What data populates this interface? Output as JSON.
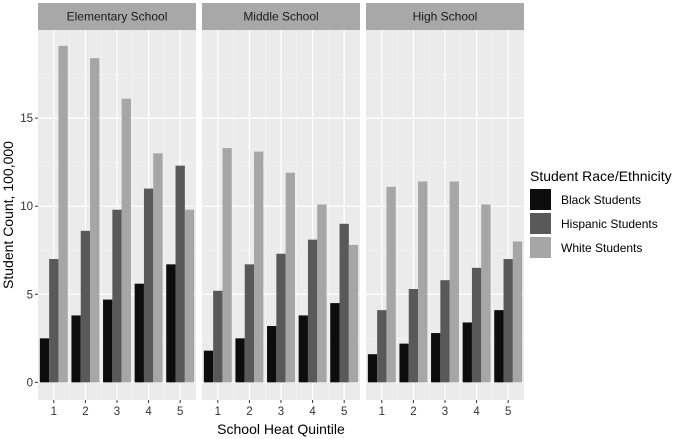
{
  "chart_data": {
    "type": "bar",
    "xlabel": "School Heat Quintile",
    "ylabel": "Student Count, 100,000",
    "categories": [
      "1",
      "2",
      "3",
      "4",
      "5"
    ],
    "y_ticks": [
      "0",
      "5",
      "10",
      "15"
    ],
    "ylim": [
      -1,
      20
    ],
    "grid": true,
    "legend": {
      "title": "Student Race/Ethnicity",
      "placement": "right",
      "entries": [
        {
          "name": "Black Students",
          "color": "#0d0d0d"
        },
        {
          "name": "Hispanic Students",
          "color": "#595959"
        },
        {
          "name": "White Students",
          "color": "#a6a6a6"
        }
      ]
    },
    "panels": [
      {
        "title": "Elementary School",
        "series": [
          {
            "name": "Black Students",
            "values": [
              2.5,
              3.8,
              4.7,
              5.6,
              6.7
            ]
          },
          {
            "name": "Hispanic Students",
            "values": [
              7.0,
              8.6,
              9.8,
              11.0,
              12.3
            ]
          },
          {
            "name": "White Students",
            "values": [
              19.1,
              18.4,
              16.1,
              13.0,
              9.8
            ]
          }
        ]
      },
      {
        "title": "Middle School",
        "series": [
          {
            "name": "Black Students",
            "values": [
              1.8,
              2.5,
              3.2,
              3.8,
              4.5
            ]
          },
          {
            "name": "Hispanic Students",
            "values": [
              5.2,
              6.7,
              7.3,
              8.1,
              9.0
            ]
          },
          {
            "name": "White Students",
            "values": [
              13.3,
              13.1,
              11.9,
              10.1,
              7.8
            ]
          }
        ]
      },
      {
        "title": "High School",
        "series": [
          {
            "name": "Black Students",
            "values": [
              1.6,
              2.2,
              2.8,
              3.4,
              4.1
            ]
          },
          {
            "name": "Hispanic Students",
            "values": [
              4.1,
              5.3,
              5.8,
              6.5,
              7.0
            ]
          },
          {
            "name": "White Students",
            "values": [
              11.1,
              11.4,
              11.4,
              10.1,
              8.0
            ]
          }
        ]
      }
    ]
  }
}
